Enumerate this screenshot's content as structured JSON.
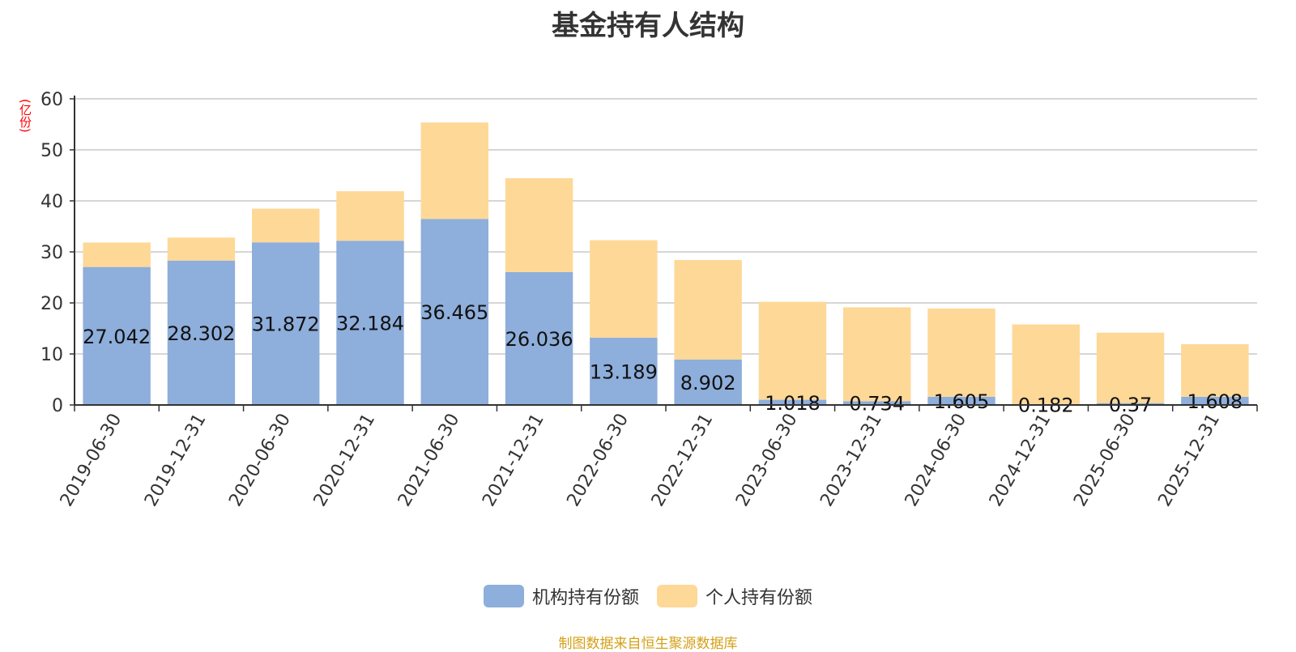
{
  "chart_data": {
    "type": "bar",
    "stacked": true,
    "title": "基金持有人结构",
    "ylabel": "(亿份)",
    "xlabel": "",
    "ylim": [
      0,
      60
    ],
    "yticks": [
      0,
      10,
      20,
      30,
      40,
      50,
      60
    ],
    "grid": true,
    "legend_position": "bottom",
    "categories": [
      "2019-06-30",
      "2019-12-31",
      "2020-06-30",
      "2020-12-31",
      "2021-06-30",
      "2021-12-31",
      "2022-06-30",
      "2022-12-31",
      "2023-06-30",
      "2023-12-31",
      "2024-06-30",
      "2024-12-31",
      "2025-06-30",
      "2025-12-31"
    ],
    "series": [
      {
        "name": "机构持有份额",
        "color": "#8eaedb",
        "values": [
          27.042,
          28.302,
          31.872,
          32.184,
          36.465,
          26.036,
          13.189,
          8.902,
          1.018,
          0.734,
          1.605,
          0.182,
          0.37,
          1.608
        ]
      },
      {
        "name": "个人持有份额",
        "color": "#fed897",
        "values": [
          4.8,
          4.5,
          6.6,
          9.7,
          18.9,
          18.4,
          19.1,
          19.5,
          19.2,
          18.4,
          17.3,
          15.6,
          13.8,
          10.3
        ]
      }
    ]
  },
  "source_note": "制图数据来自恒生聚源数据库"
}
